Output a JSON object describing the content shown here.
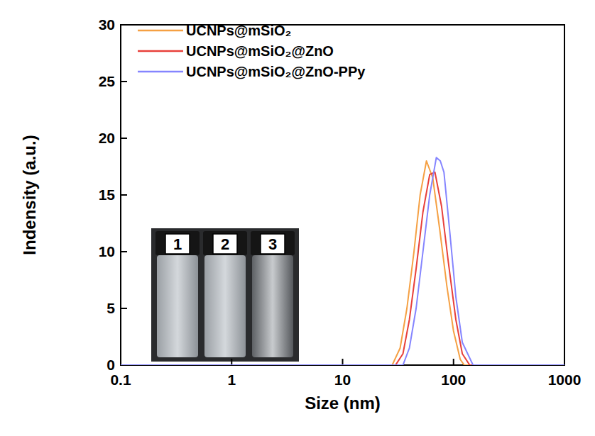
{
  "chart_data": {
    "type": "line",
    "x_label": "Size (nm)",
    "y_label": "Indensity (a.u.)",
    "log": "x",
    "xlim": [
      0.1,
      1000
    ],
    "xticks": [
      0.1,
      1,
      10,
      100,
      1000
    ],
    "ylim": [
      0,
      30
    ],
    "yticks": [
      0,
      5,
      10,
      15,
      20,
      25,
      30
    ],
    "grid": false,
    "legend": "upper left",
    "inset_labels": [
      "1",
      "2",
      "3"
    ],
    "series": [
      {
        "name": "UCNPs@mSiO₂",
        "color": "#f5a043",
        "x": [
          0.1,
          28,
          33,
          38,
          44,
          50,
          57,
          65,
          75,
          87,
          100,
          115,
          125,
          1000
        ],
        "values": [
          0,
          0,
          1.5,
          5,
          10,
          15,
          18,
          16.5,
          12,
          7,
          3,
          0.5,
          0,
          0
        ]
      },
      {
        "name": "UCNPs@mSiO₂@ZnO",
        "color": "#e8403a",
        "x": [
          0.1,
          30,
          35,
          40,
          46,
          53,
          61,
          68,
          78,
          90,
          105,
          120,
          140,
          1000
        ],
        "values": [
          0,
          0,
          1,
          4,
          8.5,
          13.5,
          16.8,
          17,
          14,
          9,
          4,
          1,
          0,
          0
        ]
      },
      {
        "name": "UCNPs@mSiO₂@ZnO-PPy",
        "color": "#8585ff",
        "x": [
          0.1,
          35,
          40,
          46,
          53,
          61,
          70,
          76,
          82,
          92,
          105,
          120,
          150,
          1000
        ],
        "values": [
          0,
          0,
          1.5,
          5,
          10,
          15,
          18.3,
          18,
          17,
          12,
          6,
          2,
          0,
          0
        ]
      }
    ]
  }
}
